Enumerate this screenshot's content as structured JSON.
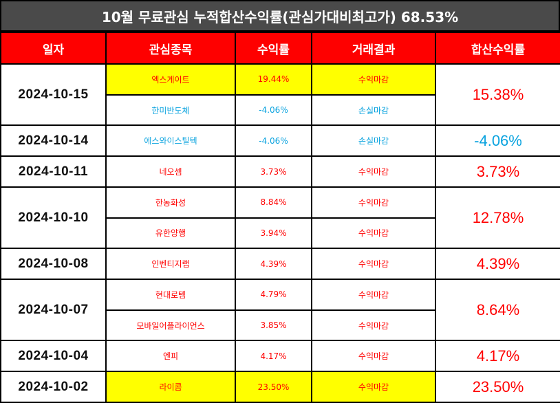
{
  "title": "10월 무료관심 누적합산수익률(관심가대비최고가) 68.53%",
  "headers": [
    "일자",
    "관심종목",
    "수익률",
    "거래결과",
    "합산수익률"
  ],
  "groups": [
    {
      "date": "2024-10-15",
      "total": "15.38%",
      "total_color": "#ff0000",
      "rows": [
        {
          "stock": "엑스게이트",
          "rate": "19.44%",
          "result": "수익마감",
          "color": "#ff0000",
          "highlight": true
        },
        {
          "stock": "한미반도체",
          "rate": "-4.06%",
          "result": "손실마감",
          "color": "#0aa3df",
          "highlight": false
        }
      ]
    },
    {
      "date": "2024-10-14",
      "total": "-4.06%",
      "total_color": "#0aa3df",
      "rows": [
        {
          "stock": "에스와이스틸텍",
          "rate": "-4.06%",
          "result": "손실마감",
          "color": "#0aa3df",
          "highlight": false
        }
      ]
    },
    {
      "date": "2024-10-11",
      "total": "3.73%",
      "total_color": "#ff0000",
      "rows": [
        {
          "stock": "네오셈",
          "rate": "3.73%",
          "result": "수익마감",
          "color": "#ff0000",
          "highlight": false
        }
      ]
    },
    {
      "date": "2024-10-10",
      "total": "12.78%",
      "total_color": "#ff0000",
      "rows": [
        {
          "stock": "한농화성",
          "rate": "8.84%",
          "result": "수익마감",
          "color": "#ff0000",
          "highlight": false
        },
        {
          "stock": "유한양행",
          "rate": "3.94%",
          "result": "수익마감",
          "color": "#ff0000",
          "highlight": false
        }
      ]
    },
    {
      "date": "2024-10-08",
      "total": "4.39%",
      "total_color": "#ff0000",
      "rows": [
        {
          "stock": "인벤티지랩",
          "rate": "4.39%",
          "result": "수익마감",
          "color": "#ff0000",
          "highlight": false
        }
      ]
    },
    {
      "date": "2024-10-07",
      "total": "8.64%",
      "total_color": "#ff0000",
      "rows": [
        {
          "stock": "현대로템",
          "rate": "4.79%",
          "result": "수익마감",
          "color": "#ff0000",
          "highlight": false
        },
        {
          "stock": "모바일어플라이언스",
          "rate": "3.85%",
          "result": "수익마감",
          "color": "#ff0000",
          "highlight": false
        }
      ]
    },
    {
      "date": "2024-10-04",
      "total": "4.17%",
      "total_color": "#ff0000",
      "rows": [
        {
          "stock": "엔피",
          "rate": "4.17%",
          "result": "수익마감",
          "color": "#ff0000",
          "highlight": false
        }
      ]
    },
    {
      "date": "2024-10-02",
      "total": "23.50%",
      "total_color": "#ff0000",
      "rows": [
        {
          "stock": "라이콤",
          "rate": "23.50%",
          "result": "수익마감",
          "color": "#ff0000",
          "highlight": true
        }
      ]
    }
  ]
}
